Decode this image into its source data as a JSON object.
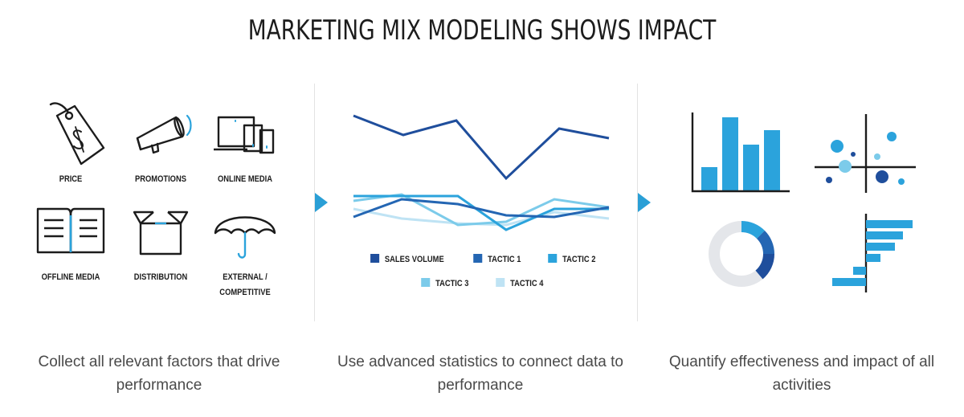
{
  "title": "MARKETING MIX MODELING SHOWS IMPACT",
  "colors": {
    "dark_blue": "#1f4e9c",
    "mid_blue": "#2466b3",
    "bright_blue": "#2ba3dc",
    "light_blue": "#7ccbea",
    "pale_blue": "#bfe3f4",
    "grey": "#e4e6ea",
    "arrow": "#2a9fd6"
  },
  "factors": [
    {
      "label": "PRICE",
      "icon": "price-tag-icon"
    },
    {
      "label": "PROMOTIONS",
      "icon": "megaphone-icon"
    },
    {
      "label": "ONLINE MEDIA",
      "icon": "devices-icon"
    },
    {
      "label": "OFFLINE MEDIA",
      "icon": "open-book-icon"
    },
    {
      "label": "DISTRIBUTION",
      "icon": "box-icon"
    },
    {
      "label": "EXTERNAL /",
      "label2": "COMPETITIVE",
      "icon": "umbrella-icon"
    }
  ],
  "legend": [
    {
      "label": "SALES VOLUME",
      "color": "#1f4e9c"
    },
    {
      "label": "TACTIC 1",
      "color": "#2466b3"
    },
    {
      "label": "TACTIC 2",
      "color": "#2ba3dc"
    },
    {
      "label": "TACTIC 3",
      "color": "#7ccbea"
    },
    {
      "label": "TACTIC 4",
      "color": "#bfe3f4"
    }
  ],
  "captions": {
    "left": "Collect all relevant factors that drive performance",
    "middle": "Use advanced statistics to connect data to performance",
    "right": "Quantify effectiveness and impact of all activities"
  },
  "result_icons": [
    "bar-chart-icon",
    "scatter-plot-icon",
    "donut-chart-icon",
    "horizontal-bar-chart-icon"
  ]
}
